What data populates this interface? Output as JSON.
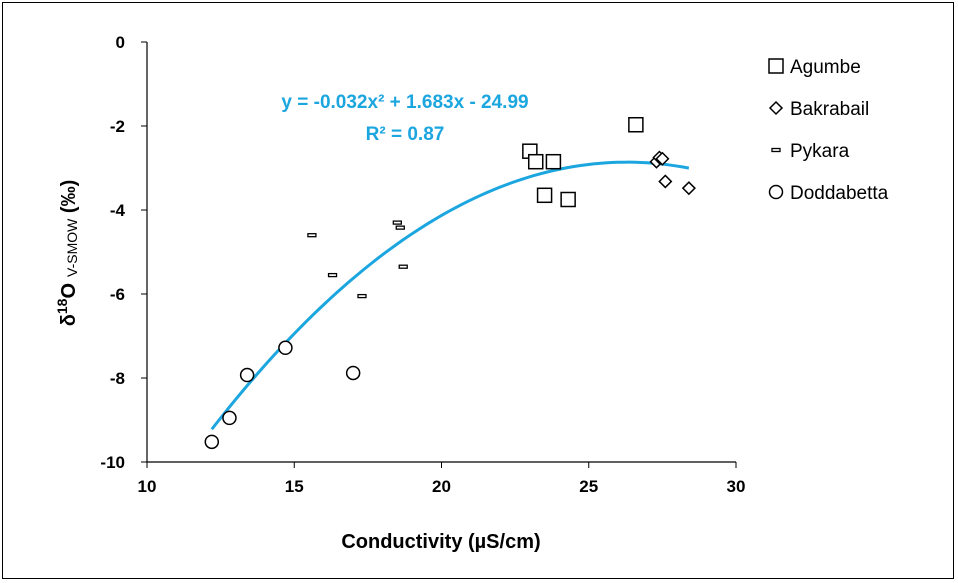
{
  "colors": {
    "trendline": "#1CA6DF",
    "marker": "#000000"
  },
  "chart_data": {
    "type": "scatter",
    "title": "",
    "xlabel": "Conductivity (µS/cm)",
    "ylabel": {
      "main": "δ",
      "sup": "18",
      "main2": "O",
      "sub": "V-SMOW",
      "unit": " (‰)"
    },
    "xlim": [
      10,
      30
    ],
    "ylim": [
      -10,
      0
    ],
    "xticks": [
      "10",
      "15",
      "20",
      "25",
      "30"
    ],
    "yticks": [
      "0",
      "-2",
      "-4",
      "-6",
      "-8",
      "-10"
    ],
    "grid": false,
    "legend_position": "right",
    "series": [
      {
        "name": "Agumbe",
        "marker": "square",
        "points": [
          [
            23.0,
            -2.6
          ],
          [
            23.2,
            -2.85
          ],
          [
            23.8,
            -2.85
          ],
          [
            23.5,
            -3.65
          ],
          [
            24.3,
            -3.75
          ],
          [
            26.6,
            -1.97
          ]
        ]
      },
      {
        "name": "Bakrabail",
        "marker": "diamond",
        "points": [
          [
            27.3,
            -2.85
          ],
          [
            27.4,
            -2.75
          ],
          [
            27.5,
            -2.78
          ],
          [
            27.6,
            -3.32
          ],
          [
            28.4,
            -3.48
          ]
        ]
      },
      {
        "name": "Pykara",
        "marker": "dash",
        "points": [
          [
            15.6,
            -4.6
          ],
          [
            16.3,
            -5.55
          ],
          [
            17.3,
            -6.05
          ],
          [
            18.5,
            -4.3
          ],
          [
            18.6,
            -4.42
          ],
          [
            18.7,
            -5.35
          ]
        ]
      },
      {
        "name": "Doddabetta",
        "marker": "circle",
        "points": [
          [
            12.2,
            -9.52
          ],
          [
            12.8,
            -8.95
          ],
          [
            13.4,
            -7.93
          ],
          [
            14.7,
            -7.28
          ],
          [
            17.0,
            -7.88
          ]
        ]
      }
    ],
    "trendline": {
      "type": "polynomial",
      "coefficients": [
        -0.032,
        1.683,
        -24.99
      ],
      "x_range": [
        12.2,
        28.4
      ],
      "equation_label": "y = -0.032x² + 1.683x - 24.99",
      "r2_label": "R² = 0.87"
    }
  }
}
